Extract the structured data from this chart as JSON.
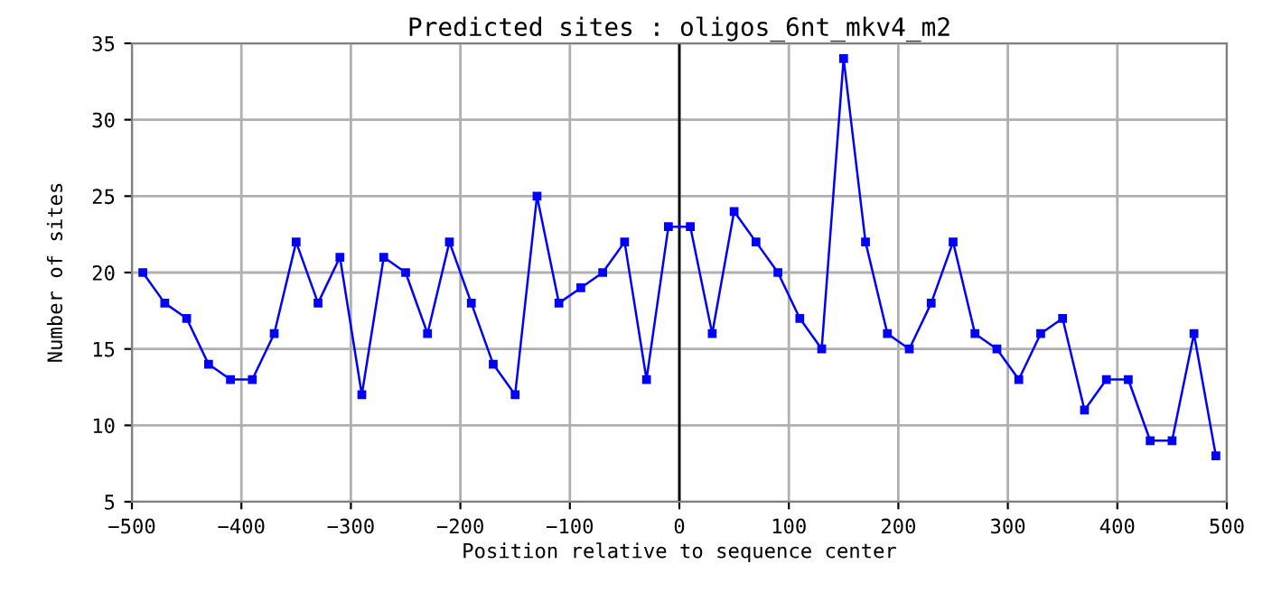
{
  "chart_data": {
    "type": "line",
    "title": "Predicted sites : oligos_6nt_mkv4_m2",
    "xlabel": "Position relative to sequence center",
    "ylabel": "Number of sites",
    "x": [
      -490,
      -470,
      -450,
      -430,
      -410,
      -390,
      -370,
      -350,
      -330,
      -310,
      -290,
      -270,
      -250,
      -230,
      -210,
      -190,
      -170,
      -150,
      -130,
      -110,
      -90,
      -70,
      -50,
      -30,
      -10,
      10,
      30,
      50,
      70,
      90,
      110,
      130,
      150,
      170,
      190,
      210,
      230,
      250,
      270,
      290,
      310,
      330,
      350,
      370,
      390,
      410,
      430,
      450,
      470,
      490
    ],
    "series": [
      {
        "color": "#0000ff",
        "values": [
          20,
          18,
          17,
          14,
          13,
          13,
          16,
          22,
          18,
          21,
          12,
          21,
          20,
          16,
          22,
          18,
          14,
          12,
          25,
          18,
          19,
          20,
          22,
          13,
          23,
          23,
          16,
          24,
          22,
          20,
          17,
          15,
          34,
          22,
          16,
          15,
          18,
          22,
          16,
          15,
          13,
          16,
          17,
          11,
          13,
          13,
          9,
          9,
          16,
          8
        ]
      }
    ],
    "xlim": [
      -500,
      500
    ],
    "xticks": [
      {
        "value": -500,
        "label": "−500"
      },
      {
        "value": -400,
        "label": "−400"
      },
      {
        "value": -300,
        "label": "−300"
      },
      {
        "value": -200,
        "label": "−200"
      },
      {
        "value": -100,
        "label": "−100"
      },
      0,
      100,
      200,
      300,
      400,
      500
    ],
    "ylim": [
      5,
      35
    ],
    "yticks": [
      5,
      10,
      15,
      20,
      25,
      30,
      35
    ],
    "ref_lines": [
      {
        "axis": "x",
        "value": 0,
        "color": "#000000"
      }
    ],
    "grid": true,
    "marker": "square",
    "line_style": "solid"
  }
}
